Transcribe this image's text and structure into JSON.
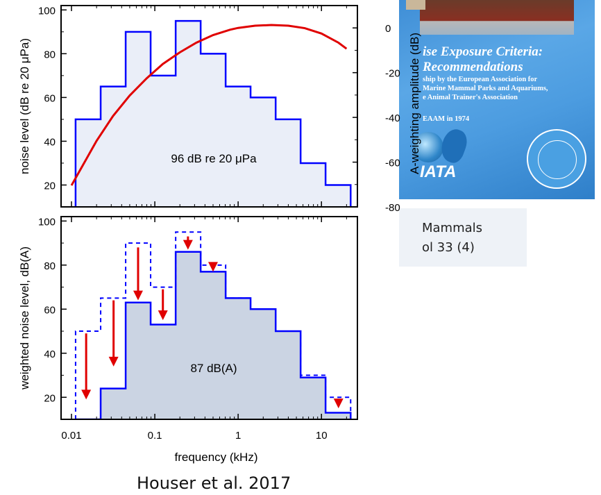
{
  "cover": {
    "title_line1": "ise Exposure Criteria:",
    "title_line2": "Recommendations",
    "line1": "ship by the European Association for",
    "line2": "Marine Mammal Parks and Aquariums,",
    "line3": "e Animal Trainer's Association",
    "line4": "EAAM in 1974",
    "logo_text": "IATA"
  },
  "citation": {
    "line1": "Mammals",
    "line2": "ol 33 (4)"
  },
  "caption": "Houser et al. 2017",
  "colors": {
    "blue": "#0000ff",
    "red": "#e00000",
    "fill_top": "#eaeef8",
    "fill_bottom": "#cbd4e3"
  },
  "chart_data": [
    {
      "type": "step",
      "panel": "top",
      "xlabel": "",
      "ylabel": "noise level (dB re 20 μPa)",
      "y2label": "A-weighting amplitude (dB)",
      "xscale": "log",
      "xlim": [
        0.0075,
        27
      ],
      "ylim": [
        10,
        102
      ],
      "y2lim": [
        -80,
        10
      ],
      "yticks": [
        20,
        40,
        60,
        80,
        100
      ],
      "y2ticks": [
        0,
        -20,
        -40,
        -60,
        -80
      ],
      "annotation": "96 dB re 20 μPa",
      "bands_edges_khz": [
        0.0112,
        0.0224,
        0.0447,
        0.0891,
        0.178,
        0.355,
        0.708,
        1.41,
        2.82,
        5.62,
        11.2,
        22.4
      ],
      "levels": [
        50,
        65,
        90,
        70,
        95,
        80,
        65,
        60,
        50,
        30,
        20
      ],
      "a_weighting": {
        "x": [
          0.01,
          0.02,
          0.0315,
          0.05,
          0.08,
          0.125,
          0.2,
          0.315,
          0.5,
          0.8,
          1,
          1.6,
          2.5,
          4,
          6.3,
          10,
          16,
          20
        ],
        "y": [
          -70.4,
          -50.5,
          -39.4,
          -30.2,
          -22.5,
          -16.1,
          -10.9,
          -6.6,
          -3.2,
          -0.8,
          0,
          1,
          1.3,
          1,
          -0.1,
          -2.5,
          -6.6,
          -9.3
        ]
      }
    },
    {
      "type": "step",
      "panel": "bottom",
      "xlabel": "frequency (kHz)",
      "ylabel": "weighted noise level, dB(A)",
      "xscale": "log",
      "xlim": [
        0.0075,
        27
      ],
      "ylim": [
        10,
        102
      ],
      "yticks": [
        20,
        40,
        60,
        80,
        100
      ],
      "xticks": [
        0.01,
        0.1,
        1,
        10
      ],
      "xticklabels": [
        "0.01",
        "0.1",
        "1",
        "10"
      ],
      "annotation": "87 dB(A)",
      "bands_edges_khz": [
        0.0112,
        0.0224,
        0.0447,
        0.0891,
        0.178,
        0.355,
        0.708,
        1.41,
        2.82,
        5.62,
        11.2,
        22.4
      ],
      "unweighted_levels": [
        50,
        65,
        90,
        70,
        95,
        80,
        65,
        60,
        50,
        30,
        20
      ],
      "weighted_levels": [
        10,
        24,
        63,
        53,
        86,
        77,
        65,
        60,
        50,
        29,
        13
      ],
      "arrows": [
        {
          "x": 0.015,
          "from": 49,
          "to": 19
        },
        {
          "x": 0.032,
          "from": 64,
          "to": 34
        },
        {
          "x": 0.063,
          "from": 88,
          "to": 64
        },
        {
          "x": 0.125,
          "from": 69,
          "to": 55
        },
        {
          "x": 0.25,
          "from": 93,
          "to": 87
        },
        {
          "x": 0.5,
          "from": 80,
          "to": 77
        },
        {
          "x": 16,
          "from": 19,
          "to": 15
        }
      ]
    }
  ]
}
